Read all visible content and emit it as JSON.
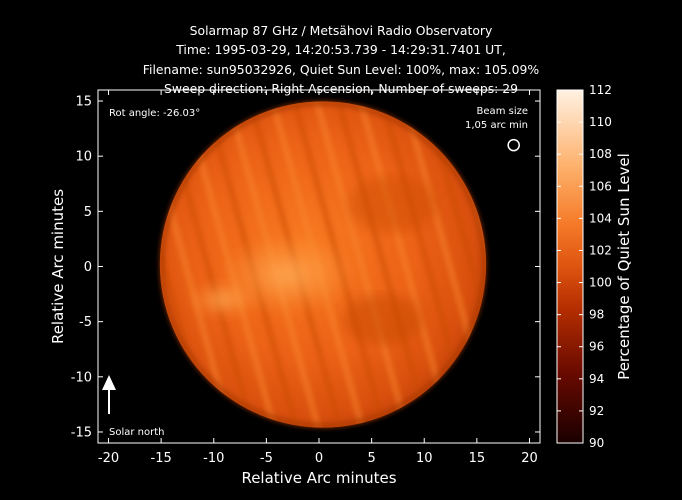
{
  "title_lines": [
    "Solarmap 87 GHz / Metsähovi Radio Observatory",
    "Time: 1995-03-29, 14:20:53.739 - 14:29:31.7401 UT,",
    "Filename: sun95032926, Quiet Sun Level: 100%, max: 105.09%",
    "Sweep direction: Right Ascension, Number of sweeps: 29"
  ],
  "chart_data": {
    "type": "heatmap",
    "xlabel": "Relative Arc minutes",
    "ylabel": "Relative Arc minutes",
    "xlim": [
      -21,
      21
    ],
    "ylim": [
      -16,
      16
    ],
    "xticks": [
      -20,
      -15,
      -10,
      -5,
      0,
      5,
      10,
      15,
      20
    ],
    "yticks": [
      15,
      10,
      5,
      0,
      -5,
      -10,
      -15
    ],
    "colorbar": {
      "label": "Percentage of Quiet Sun Level",
      "range": [
        90,
        112
      ],
      "ticks": [
        112,
        110,
        108,
        106,
        104,
        102,
        100,
        98,
        96,
        94,
        92,
        90
      ]
    },
    "solar_disk": {
      "center": [
        0,
        0
      ],
      "radius_arcmin": 15.5,
      "typical_level": 100,
      "max_level": 105.09
    },
    "beam": {
      "label_line1": "Beam size",
      "label_line2": "1,05 arc min",
      "position": [
        18.5,
        11
      ],
      "size_arcmin": 1.05
    },
    "rotation_label": "Rot angle: -26.03°",
    "north_label": "Solar north"
  }
}
